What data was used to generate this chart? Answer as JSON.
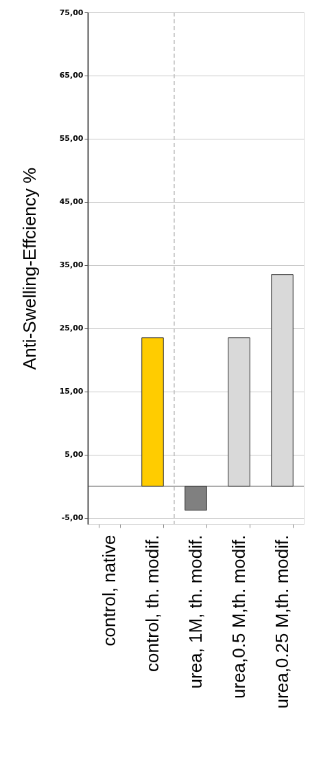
{
  "chart_data": {
    "type": "bar",
    "ylabel": "Anti-Swelling-Effciency %",
    "categories": [
      "control, native",
      "control, th. modif.",
      "urea, 1M, th. modif.",
      "urea,0.5 M,th. modif.",
      "urea,0.25 M,th. modif."
    ],
    "values": [
      null,
      23.5,
      -3.8,
      23.5,
      33.5
    ],
    "colors": [
      null,
      "#ffcc00",
      "#808080",
      "#d9d9d9",
      "#d9d9d9"
    ],
    "ylim": [
      -6,
      75
    ],
    "yticks": [
      {
        "value": -5,
        "label": "-5,00"
      },
      {
        "value": 5,
        "label": "5,00"
      },
      {
        "value": 15,
        "label": "15,00"
      },
      {
        "value": 25,
        "label": "25,00"
      },
      {
        "value": 35,
        "label": "35,00"
      },
      {
        "value": 45,
        "label": "45,00"
      },
      {
        "value": 55,
        "label": "55,00"
      },
      {
        "value": 65,
        "label": "65,00"
      },
      {
        "value": 75,
        "label": "75,00"
      }
    ],
    "grid": "y",
    "ref_lines": [
      {
        "axis": "x",
        "value": "urea, 1M, th. modif.",
        "line_style": "dashed",
        "color": "#c0c0c0"
      }
    ]
  }
}
